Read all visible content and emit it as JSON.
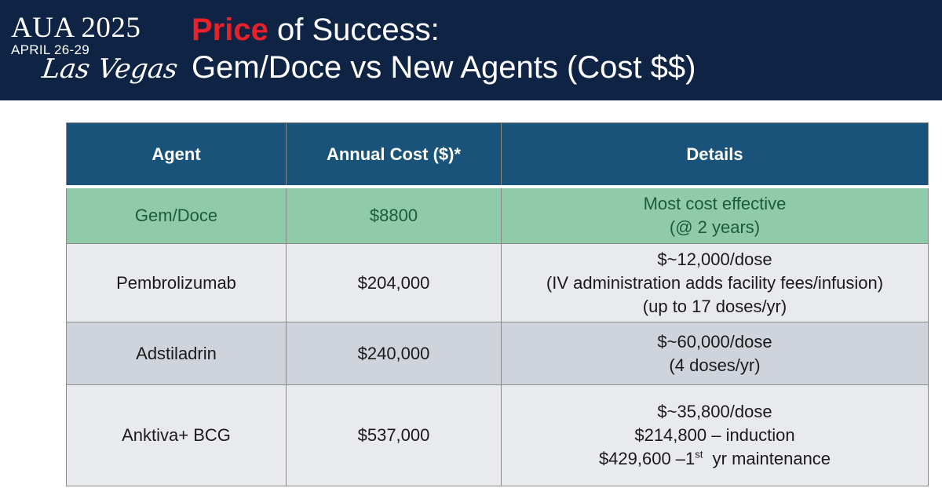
{
  "logo": {
    "main": "AUA 2025",
    "dates": "APRIL 26-29",
    "city": "Las Vegas"
  },
  "title": {
    "accent": "Price",
    "rest": " of Success:",
    "line2": "Gem/Doce vs New Agents (Cost $$)"
  },
  "colors": {
    "header_bg": "#0f2445",
    "title_accent": "#e8202a",
    "table_header_bg": "#1a5379",
    "highlight_row_bg": "#8fcaa9"
  },
  "table": {
    "columns": [
      "Agent",
      "Annual Cost ($)*",
      "Details"
    ],
    "rows": [
      {
        "agent": "Gem/Doce",
        "cost": "$8800",
        "details": [
          "Most cost effective",
          "(@ 2 years)"
        ]
      },
      {
        "agent": "Pembrolizumab",
        "cost": "$204,000",
        "details": [
          "$~12,000/dose",
          "(IV administration adds facility fees/infusion)",
          "(up to 17 doses/yr)"
        ]
      },
      {
        "agent": "Adstiladrin",
        "cost": "$240,000",
        "details": [
          "$~60,000/dose",
          "(4 doses/yr)"
        ]
      },
      {
        "agent": "Anktiva+ BCG",
        "cost": "$537,000",
        "details": [
          "$~35,800/dose",
          "$214,800 – induction"
        ],
        "details_last": {
          "pre": "$429,600 –1",
          "sup": "st",
          "post": "  yr maintenance"
        }
      }
    ]
  }
}
